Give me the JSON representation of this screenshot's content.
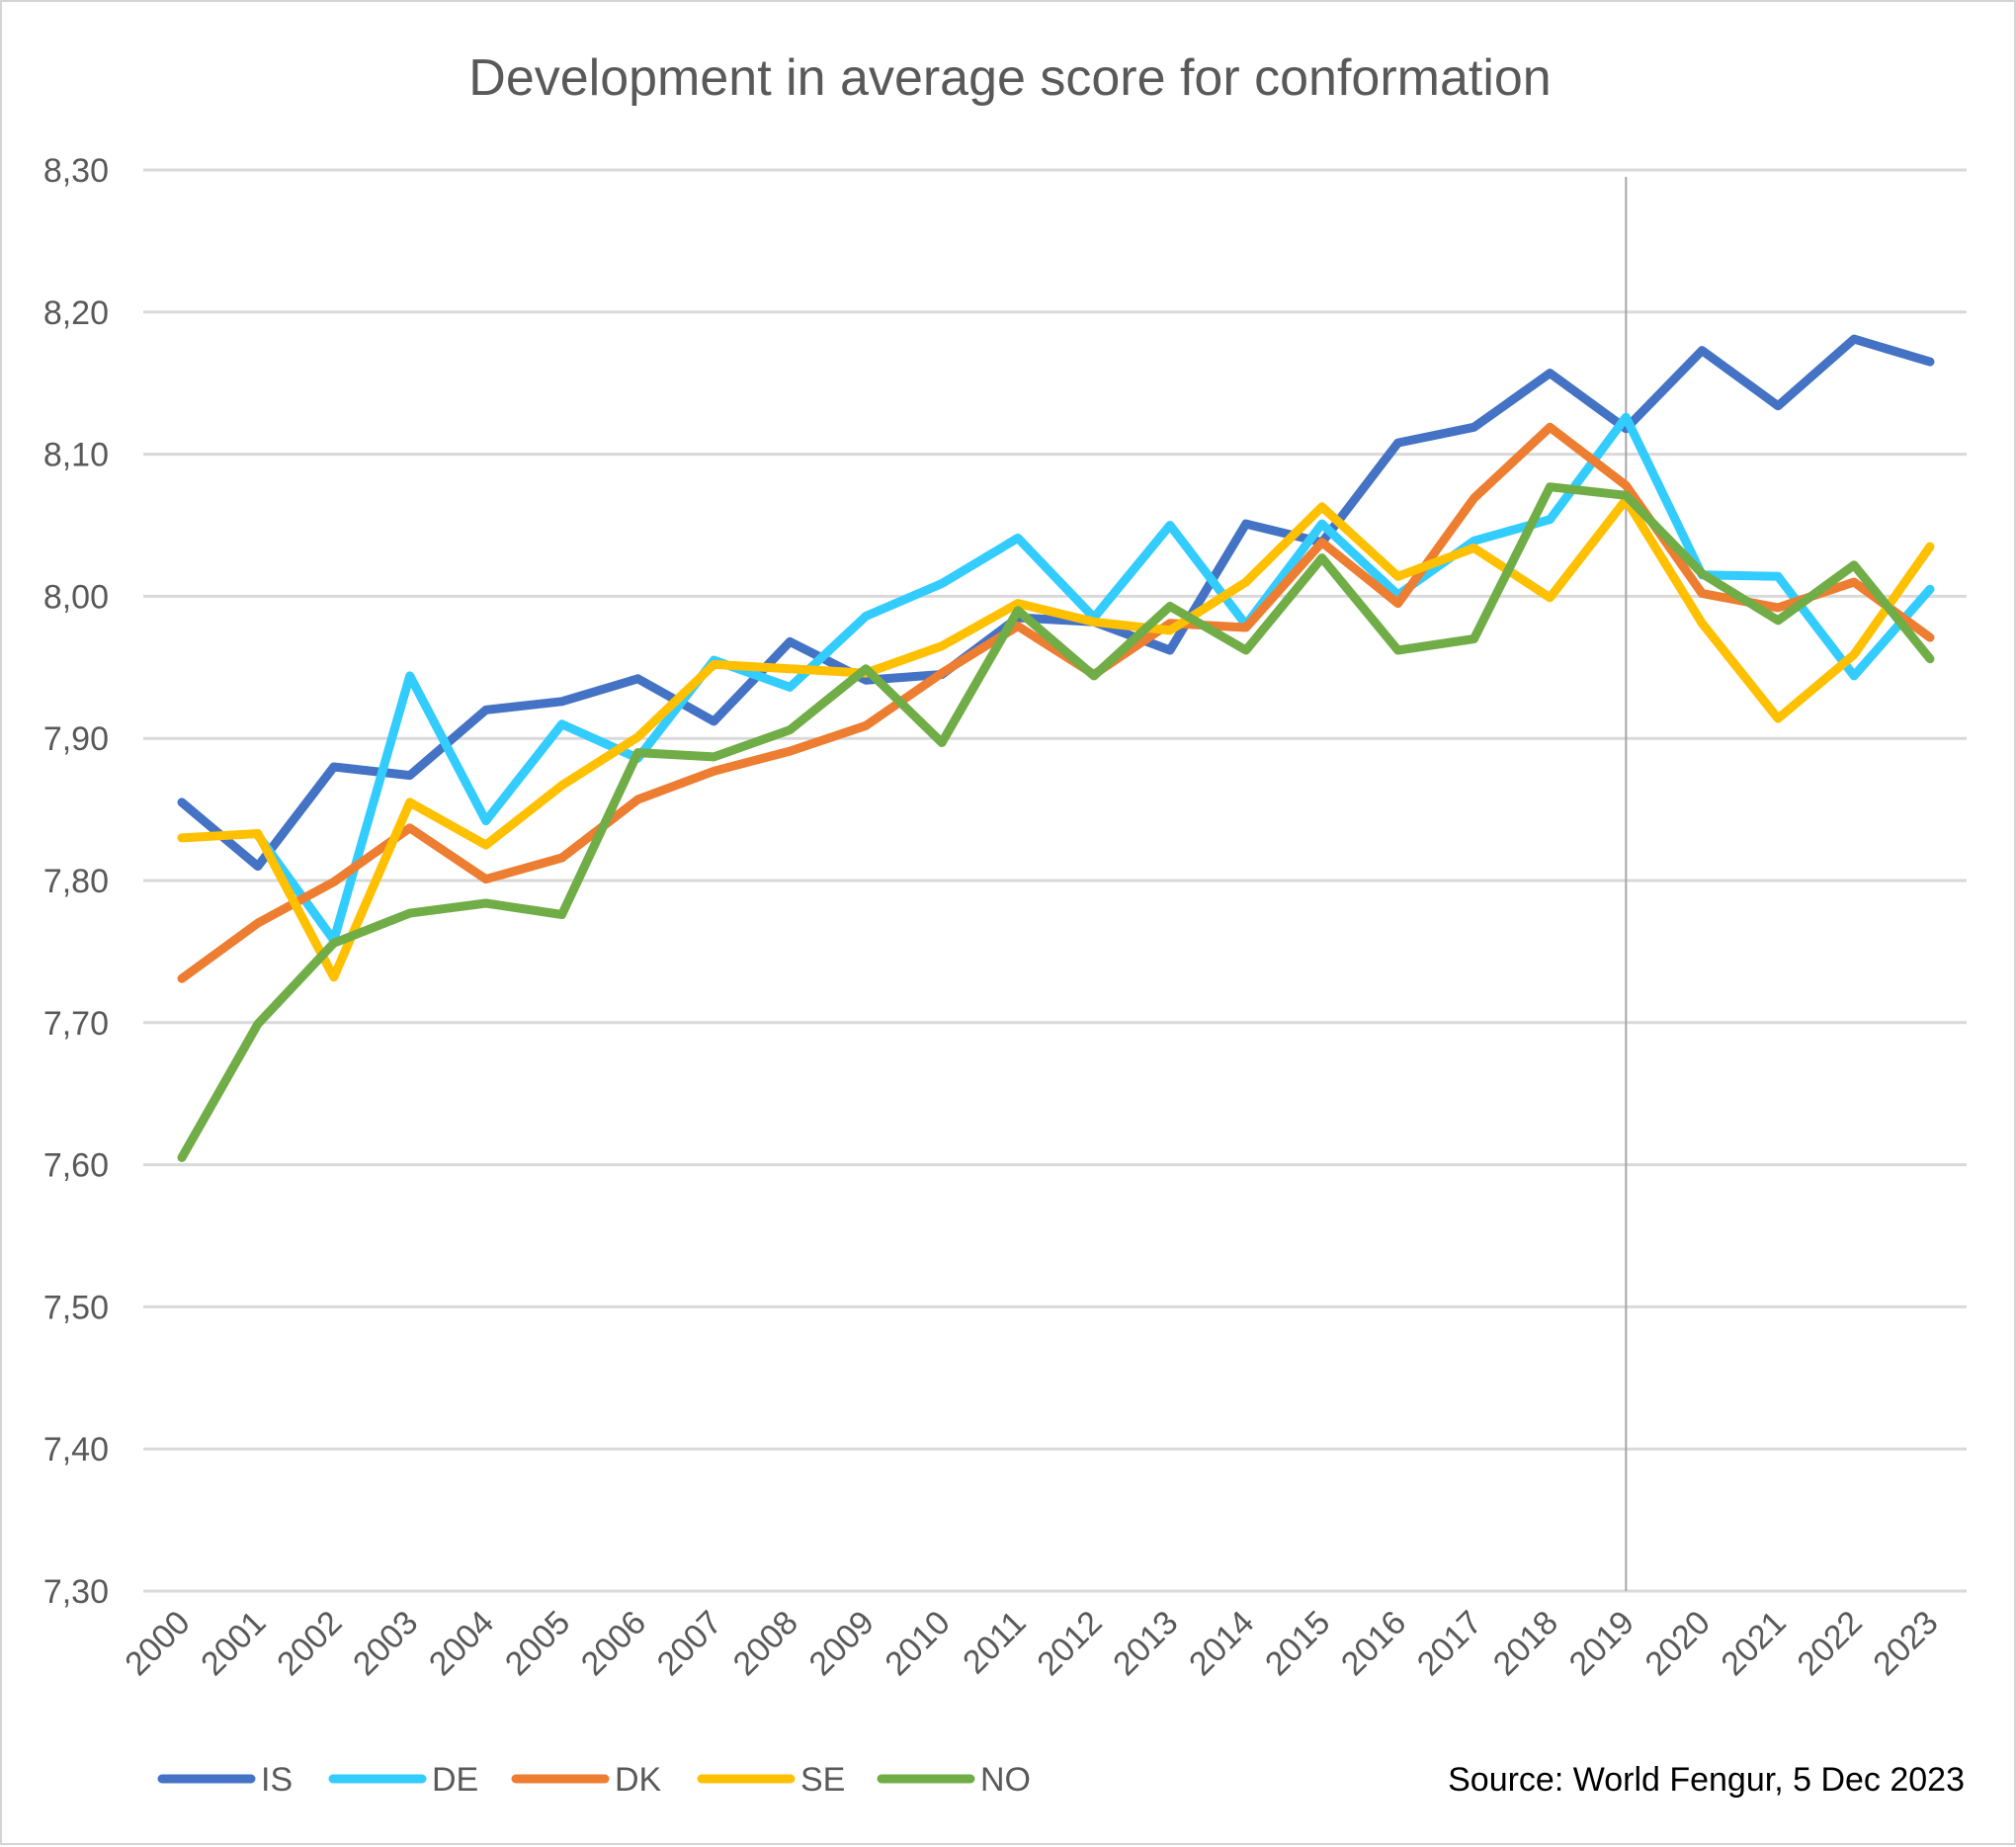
{
  "chart_data": {
    "type": "line",
    "title": "Development in average score for conformation",
    "xlabel": "",
    "ylabel": "",
    "ylim": [
      7.3,
      8.3
    ],
    "y_ticks": [
      "7,30",
      "7,40",
      "7,50",
      "7,60",
      "7,70",
      "7,80",
      "7,90",
      "8,00",
      "8,10",
      "8,20",
      "8,30"
    ],
    "y_tick_values": [
      7.3,
      7.4,
      7.5,
      7.6,
      7.7,
      7.8,
      7.9,
      8.0,
      8.1,
      8.2,
      8.3
    ],
    "grid": true,
    "legend_position": "bottom-left",
    "reference_line_x": "2019",
    "x": [
      "2000",
      "2001",
      "2002",
      "2003",
      "2004",
      "2005",
      "2006",
      "2007",
      "2008",
      "2009",
      "2010",
      "2011",
      "2012",
      "2013",
      "2014",
      "2015",
      "2016",
      "2017",
      "2018",
      "2019",
      "2020",
      "2021",
      "2022",
      "2023"
    ],
    "series": [
      {
        "name": "IS",
        "color": "#4472c4",
        "values": [
          7.855,
          7.81,
          7.88,
          7.874,
          7.92,
          7.926,
          7.942,
          7.912,
          7.968,
          7.941,
          7.945,
          7.985,
          7.982,
          7.962,
          8.051,
          8.038,
          8.108,
          8.119,
          8.157,
          8.118,
          8.173,
          8.134,
          8.181,
          8.165
        ]
      },
      {
        "name": "DE",
        "color": "#33ccff",
        "values": [
          null,
          7.832,
          7.758,
          7.944,
          7.842,
          7.91,
          7.886,
          7.955,
          7.936,
          7.986,
          8.009,
          8.041,
          7.985,
          8.05,
          7.98,
          8.051,
          8.001,
          8.039,
          8.054,
          8.126,
          8.015,
          8.014,
          7.944,
          8.005
        ]
      },
      {
        "name": "DK",
        "color": "#ed7d31",
        "values": [
          7.731,
          7.77,
          7.799,
          7.837,
          7.801,
          7.816,
          7.857,
          7.877,
          7.891,
          7.909,
          7.946,
          7.979,
          7.945,
          7.981,
          7.978,
          8.038,
          7.995,
          8.069,
          8.119,
          8.078,
          8.002,
          7.992,
          8.01,
          7.971
        ]
      },
      {
        "name": "SE",
        "color": "#ffc000",
        "values": [
          7.83,
          7.833,
          7.732,
          7.855,
          7.825,
          7.867,
          7.901,
          7.952,
          7.949,
          7.946,
          7.965,
          7.995,
          7.982,
          7.976,
          8.01,
          8.063,
          8.014,
          8.034,
          7.999,
          8.068,
          7.981,
          7.914,
          7.959,
          8.035
        ]
      },
      {
        "name": "NO",
        "color": "#70ad47",
        "values": [
          7.605,
          7.699,
          7.756,
          7.777,
          7.784,
          7.776,
          7.89,
          7.887,
          7.906,
          7.949,
          7.897,
          7.99,
          7.944,
          7.993,
          7.962,
          8.027,
          7.962,
          7.97,
          8.077,
          8.071,
          8.016,
          7.983,
          8.022,
          7.956
        ]
      }
    ]
  },
  "source_note": "Source: World Fengur, 5 Dec 2023"
}
